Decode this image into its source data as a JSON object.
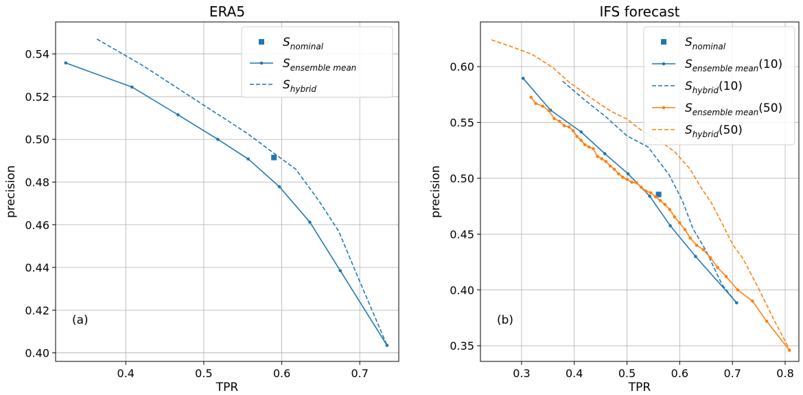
{
  "figure": {
    "colors": {
      "blue": "#1f77b4",
      "orange": "#ff7f0e",
      "grid": "#b0b0b0"
    }
  },
  "chart_data": [
    {
      "type": "line",
      "title": "ERA5",
      "xlabel": "TPR",
      "ylabel": "precision",
      "panel_label": "(a)",
      "xlim": [
        0.31,
        0.75
      ],
      "ylim": [
        0.396,
        0.555
      ],
      "xticks": [
        0.4,
        0.5,
        0.6,
        0.7
      ],
      "xtick_labels": [
        "0.4",
        "0.5",
        "0.6",
        "0.7"
      ],
      "yticks": [
        0.4,
        0.42,
        0.44,
        0.46,
        0.48,
        0.5,
        0.52,
        0.54
      ],
      "ytick_labels": [
        "0.40",
        "0.42",
        "0.44",
        "0.46",
        "0.48",
        "0.50",
        "0.52",
        "0.54"
      ],
      "grid": true,
      "legend_position": "top-right",
      "series": [
        {
          "key": "nominal",
          "legend": {
            "base": "S",
            "sub": "nominal",
            "suffix": ""
          },
          "style": "square-marker",
          "color": "#1f77b4",
          "x": [
            0.59
          ],
          "y": [
            0.4915
          ]
        },
        {
          "key": "ensemble_mean",
          "legend": {
            "base": "S",
            "sub": "ensemble mean",
            "suffix": ""
          },
          "style": "solid-dot",
          "color": "#1f77b4",
          "x": [
            0.323,
            0.408,
            0.467,
            0.518,
            0.557,
            0.597,
            0.636,
            0.675,
            0.735
          ],
          "y": [
            0.5358,
            0.5245,
            0.5115,
            0.5,
            0.4908,
            0.4778,
            0.4612,
            0.4385,
            0.4035
          ]
        },
        {
          "key": "hybrid",
          "legend": {
            "base": "S",
            "sub": "hybrid",
            "suffix": ""
          },
          "style": "dashed",
          "color": "#1f77b4",
          "x": [
            0.363,
            0.42,
            0.5,
            0.555,
            0.59,
            0.618,
            0.648,
            0.673,
            0.697,
            0.735
          ],
          "y": [
            0.547,
            0.535,
            0.516,
            0.503,
            0.4935,
            0.486,
            0.471,
            0.457,
            0.436,
            0.4035
          ]
        }
      ]
    },
    {
      "type": "line",
      "title": "IFS forecast",
      "xlabel": "TPR",
      "ylabel": "precision",
      "panel_label": "(b)",
      "xlim": [
        0.222,
        0.826
      ],
      "ylim": [
        0.336,
        0.64
      ],
      "xticks": [
        0.3,
        0.4,
        0.5,
        0.6,
        0.7,
        0.8
      ],
      "xtick_labels": [
        "0.3",
        "0.4",
        "0.5",
        "0.6",
        "0.7",
        "0.8"
      ],
      "yticks": [
        0.35,
        0.4,
        0.45,
        0.5,
        0.55,
        0.6
      ],
      "ytick_labels": [
        "0.35",
        "0.40",
        "0.45",
        "0.50",
        "0.55",
        "0.60"
      ],
      "grid": true,
      "legend_position": "top-right",
      "series": [
        {
          "key": "nominal",
          "legend": {
            "base": "S",
            "sub": "nominal",
            "suffix": ""
          },
          "style": "square-marker",
          "color": "#1f77b4",
          "x": [
            0.56
          ],
          "y": [
            0.4855
          ]
        },
        {
          "key": "ensemble_mean_10",
          "legend": {
            "base": "S",
            "sub": "ensemble mean",
            "suffix": "(10)"
          },
          "style": "solid-dot",
          "color": "#1f77b4",
          "x": [
            0.303,
            0.355,
            0.413,
            0.458,
            0.502,
            0.543,
            0.582,
            0.63,
            0.708
          ],
          "y": [
            0.5895,
            0.561,
            0.5415,
            0.522,
            0.504,
            0.484,
            0.4575,
            0.43,
            0.3885
          ]
        },
        {
          "key": "hybrid_10",
          "legend": {
            "base": "S",
            "sub": "hybrid",
            "suffix": "(10)"
          },
          "style": "dashed",
          "color": "#1f77b4",
          "x": [
            0.378,
            0.42,
            0.46,
            0.5,
            0.54,
            0.58,
            0.605,
            0.625,
            0.65,
            0.68,
            0.708
          ],
          "y": [
            0.587,
            0.57,
            0.555,
            0.538,
            0.528,
            0.503,
            0.48,
            0.455,
            0.435,
            0.405,
            0.388
          ]
        },
        {
          "key": "ensemble_mean_50",
          "legend": {
            "base": "S",
            "sub": "ensemble mean",
            "suffix": "(50)"
          },
          "style": "solid-dot",
          "color": "#ff7f0e",
          "x": [
            0.318,
            0.327,
            0.34,
            0.352,
            0.362,
            0.372,
            0.381,
            0.39,
            0.398,
            0.405,
            0.413,
            0.42,
            0.428,
            0.436,
            0.444,
            0.452,
            0.46,
            0.468,
            0.476,
            0.484,
            0.492,
            0.5,
            0.509,
            0.518,
            0.527,
            0.536,
            0.545,
            0.554,
            0.563,
            0.572,
            0.581,
            0.59,
            0.6,
            0.61,
            0.62,
            0.632,
            0.645,
            0.658,
            0.672,
            0.688,
            0.71,
            0.738,
            0.765,
            0.808
          ],
          "y": [
            0.5725,
            0.567,
            0.5645,
            0.5605,
            0.5535,
            0.551,
            0.547,
            0.546,
            0.5425,
            0.5375,
            0.534,
            0.53,
            0.528,
            0.5265,
            0.5195,
            0.5175,
            0.515,
            0.511,
            0.508,
            0.504,
            0.501,
            0.499,
            0.4965,
            0.496,
            0.492,
            0.4885,
            0.487,
            0.4835,
            0.48,
            0.4765,
            0.472,
            0.4655,
            0.46,
            0.454,
            0.4465,
            0.44,
            0.436,
            0.429,
            0.42,
            0.412,
            0.4,
            0.39,
            0.372,
            0.346
          ]
        },
        {
          "key": "hybrid_50",
          "legend": {
            "base": "S",
            "sub": "hybrid",
            "suffix": "(50)"
          },
          "style": "dashed",
          "color": "#ff7f0e",
          "x": [
            0.243,
            0.28,
            0.32,
            0.36,
            0.39,
            0.42,
            0.45,
            0.47,
            0.5,
            0.53,
            0.56,
            0.59,
            0.62,
            0.64,
            0.66,
            0.68,
            0.7,
            0.72,
            0.75,
            0.78,
            0.81
          ],
          "y": [
            0.624,
            0.618,
            0.611,
            0.599,
            0.586,
            0.576,
            0.566,
            0.56,
            0.553,
            0.542,
            0.534,
            0.524,
            0.508,
            0.492,
            0.478,
            0.46,
            0.441,
            0.428,
            0.401,
            0.372,
            0.345
          ]
        }
      ]
    }
  ]
}
